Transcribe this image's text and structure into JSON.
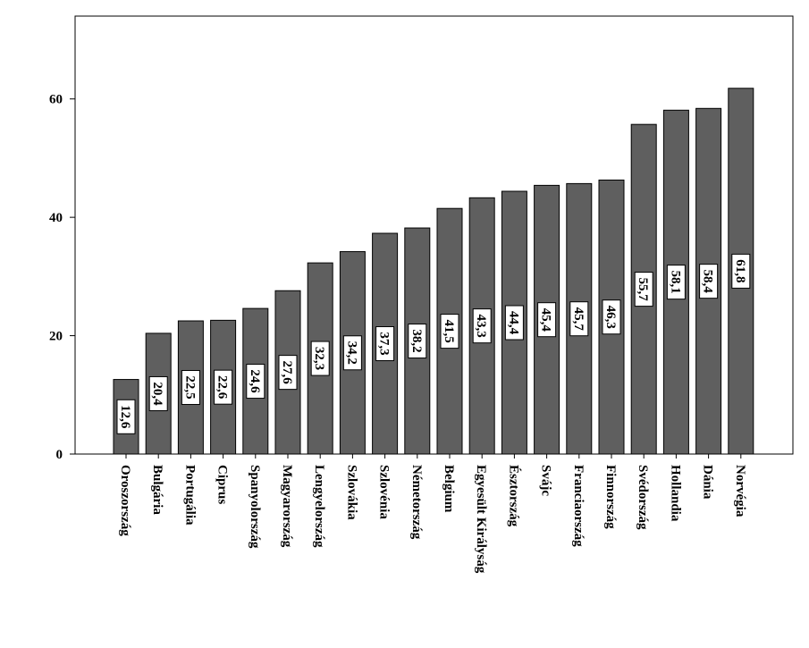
{
  "chart_data": {
    "type": "bar",
    "title": "",
    "xlabel": "",
    "ylabel": "",
    "ylim": [
      0,
      74
    ],
    "yticks": [
      0,
      20,
      40,
      60
    ],
    "grid": false,
    "categories": [
      "Oroszország",
      "Bulgária",
      "Portugália",
      "Ciprus",
      "Spanyolország",
      "Magyarország",
      "Lengyelország",
      "Szlovákia",
      "Szlovénia",
      "Németország",
      "Belgium",
      "Egyesült Királyság",
      "Észtország",
      "Svájc",
      "Franciaország",
      "Finnország",
      "Svédország",
      "Hollandia",
      "Dánia",
      "Norvégia"
    ],
    "values": [
      12.6,
      20.4,
      22.5,
      22.6,
      24.6,
      27.6,
      32.3,
      34.2,
      37.3,
      38.2,
      41.5,
      43.3,
      44.4,
      45.4,
      45.7,
      46.3,
      55.7,
      58.1,
      58.4,
      61.8
    ],
    "data_labels": [
      "12,6",
      "20,4",
      "22,5",
      "22,6",
      "24,6",
      "27,6",
      "32,3",
      "34,2",
      "37,3",
      "38,2",
      "41,5",
      "43,3",
      "44,4",
      "45,4",
      "45,7",
      "46,3",
      "55,7",
      "58,1",
      "58,4",
      "61,8"
    ],
    "bar_color": "#5f5f5f"
  }
}
